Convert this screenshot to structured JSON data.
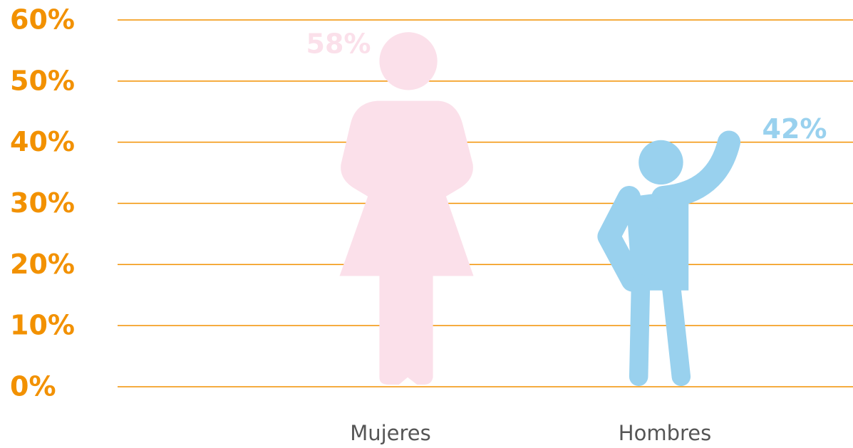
{
  "chart_data": {
    "type": "bar",
    "categories": [
      "Mujeres",
      "Hombres"
    ],
    "values": [
      58,
      42
    ],
    "value_labels": [
      "58%",
      "42%"
    ],
    "colors": [
      "#fbe0ea",
      "#99d1ee"
    ],
    "ylim": [
      0,
      60
    ],
    "yticks": [
      {
        "value": 0,
        "label": "0%"
      },
      {
        "value": 10,
        "label": "10%"
      },
      {
        "value": 20,
        "label": "20%"
      },
      {
        "value": 30,
        "label": "30%"
      },
      {
        "value": 40,
        "label": "40%"
      },
      {
        "value": 50,
        "label": "50%"
      },
      {
        "value": 60,
        "label": "60%"
      }
    ],
    "grid": true
  }
}
